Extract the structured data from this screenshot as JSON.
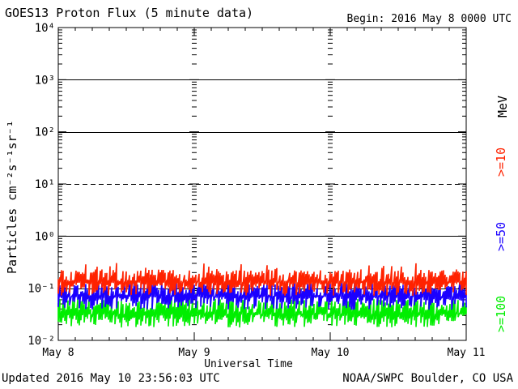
{
  "chart_data": {
    "type": "line",
    "title": "GOES13 Proton Flux (5 minute data)",
    "begin": "Begin: 2016 May 8 0000 UTC",
    "xlabel": "Universal Time",
    "ylabel": "Particles cm⁻²s⁻¹sr⁻¹",
    "x_ticks": [
      "May 8",
      "May 9",
      "May 10",
      "May 11"
    ],
    "y_ticks": [
      "10⁻²",
      "10⁻¹",
      "10⁰",
      "10¹",
      "10²",
      "10³",
      "10⁴"
    ],
    "y_scale": "log",
    "ylim": [
      0.01,
      10000
    ],
    "unit_label": "MeV",
    "reference_lines": [
      {
        "y": 0.1,
        "style": "solid"
      },
      {
        "y": 1,
        "style": "solid"
      },
      {
        "y": 10,
        "style": "dashed"
      },
      {
        "y": 100,
        "style": "solid"
      },
      {
        "y": 1000,
        "style": "solid"
      }
    ],
    "series": [
      {
        "name": ">=10",
        "color": "#ff2200",
        "baseline": 0.13,
        "spread": 0.1
      },
      {
        "name": ">=50",
        "color": "#1a00ff",
        "baseline": 0.07,
        "spread": 0.06
      },
      {
        "name": ">=100",
        "color": "#00ee00",
        "baseline": 0.032,
        "spread": 0.03
      }
    ]
  },
  "footer": {
    "updated": "Updated 2016 May 10 23:56:03 UTC",
    "credit": "NOAA/SWPC Boulder, CO USA"
  }
}
